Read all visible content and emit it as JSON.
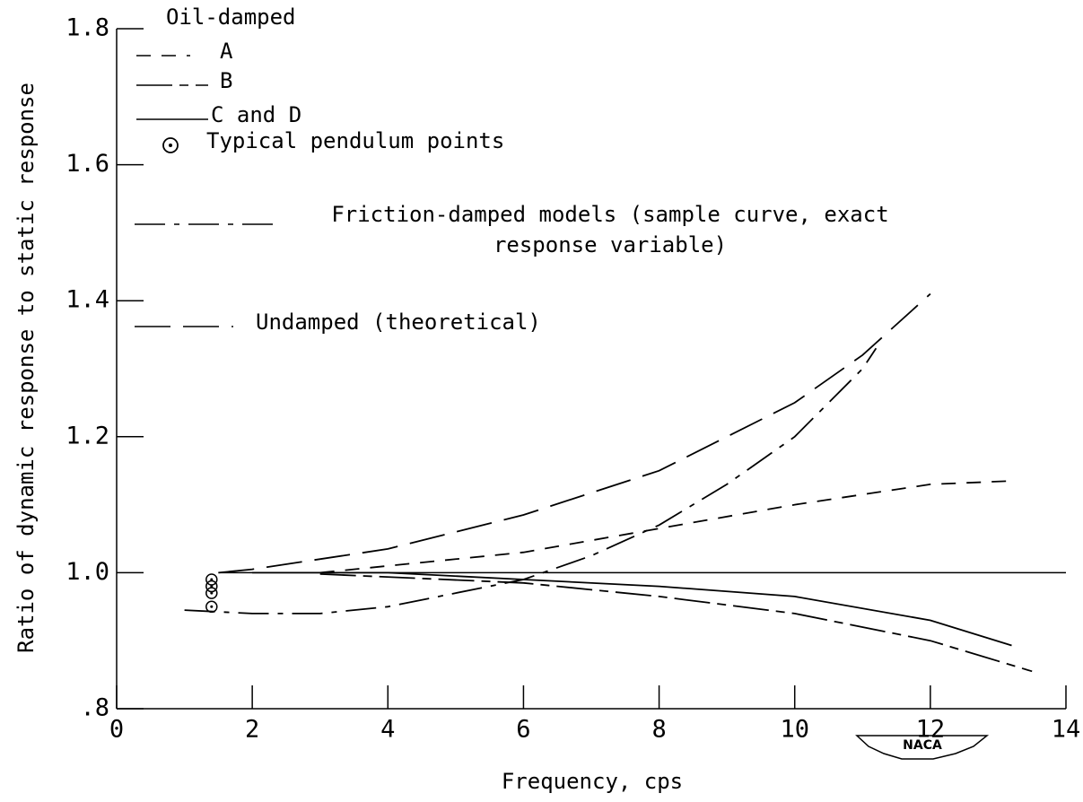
{
  "chart_data": {
    "type": "line",
    "x_label": "Frequency, cps",
    "y_label": "Ratio of dynamic response to static response",
    "legend_title": "Oil-damped",
    "logo": "NACA",
    "xlim": [
      0,
      14
    ],
    "ylim": [
      0.8,
      1.8
    ],
    "xticks": [
      0,
      2,
      4,
      6,
      8,
      10,
      12,
      14
    ],
    "yticks": [
      {
        "value": 0.8,
        "label": ".8"
      },
      {
        "value": 1,
        "label": "1.0"
      },
      1.2,
      1.4,
      1.6,
      1.8
    ],
    "reference_line": {
      "y": 1,
      "x": [
        1.5,
        14
      ]
    },
    "series": [
      {
        "name": "A",
        "color": "#000000",
        "line_style": "dashed",
        "x": [
          3,
          4,
          6,
          8,
          10,
          12,
          13.2
        ],
        "values": [
          1.0,
          1.01,
          1.03,
          1.065,
          1.1,
          1.13,
          1.135
        ]
      },
      {
        "name": "B",
        "color": "#000000",
        "line_style": "long-short",
        "x": [
          3,
          6,
          8,
          10,
          12,
          13.5
        ],
        "values": [
          0.998,
          0.985,
          0.965,
          0.94,
          0.9,
          0.855
        ]
      },
      {
        "name": "C and D",
        "color": "#000000",
        "line_style": "solid",
        "x": [
          2,
          4,
          6,
          8,
          10,
          12,
          13.2
        ],
        "values": [
          1.0,
          1.0,
          0.99,
          0.98,
          0.965,
          0.93,
          0.893
        ]
      },
      {
        "name": "Typical pendulum points",
        "color": "#000000",
        "line_style": "points",
        "x": [
          1.4,
          1.4,
          1.4,
          1.4
        ],
        "values": [
          0.99,
          0.98,
          0.97,
          0.95
        ]
      },
      {
        "name": "Friction-damped models (sample curve, exact response variable)",
        "color": "#000000",
        "line_style": "dash-dot",
        "x": [
          1,
          2,
          3,
          4,
          5,
          6,
          7,
          8,
          9,
          10,
          11,
          11.2
        ],
        "values": [
          0.945,
          0.94,
          0.94,
          0.95,
          0.97,
          0.99,
          1.025,
          1.07,
          1.13,
          1.2,
          1.3,
          1.33
        ]
      },
      {
        "name": "Undamped (theoretical)",
        "color": "#000000",
        "line_style": "long-dash",
        "x": [
          1.5,
          2,
          4,
          6,
          8,
          10,
          11,
          12
        ],
        "values": [
          1.0,
          1.005,
          1.035,
          1.085,
          1.15,
          1.25,
          1.32,
          1.41
        ]
      }
    ]
  }
}
